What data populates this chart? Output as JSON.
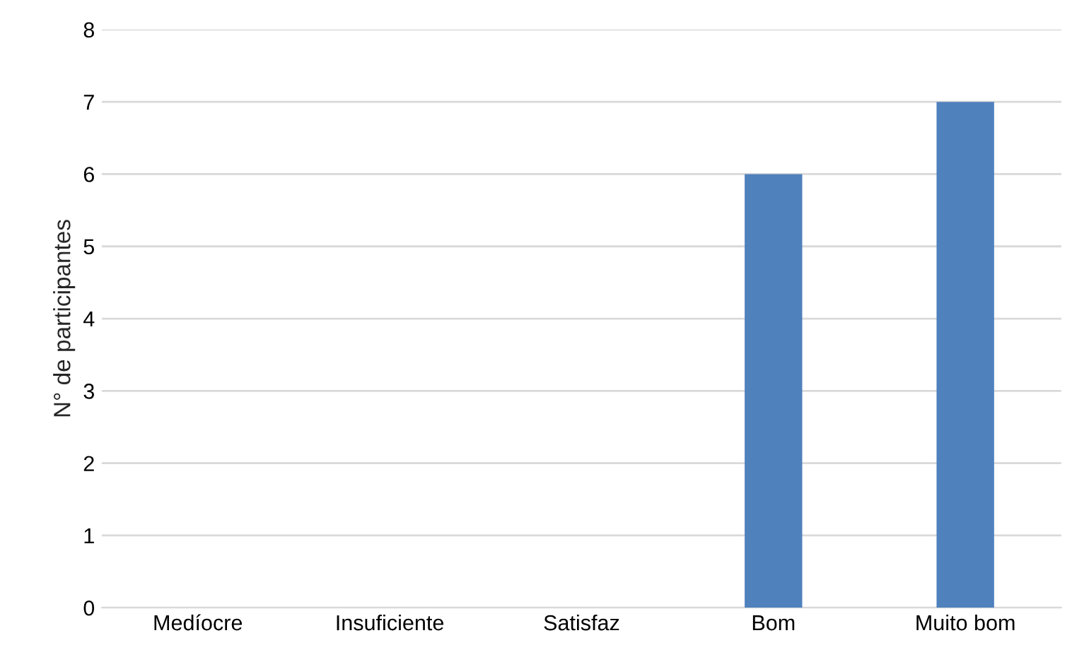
{
  "chart_data": {
    "type": "bar",
    "ylabel": "N° de participantes",
    "categories": [
      "Medíocre",
      "Insuficiente",
      "Satisfaz",
      "Bom",
      "Muito bom"
    ],
    "values": [
      0,
      0,
      0,
      6,
      7
    ],
    "color": "#4f81bd",
    "ylim": [
      0,
      8
    ],
    "yticks": [
      0,
      1,
      2,
      3,
      4,
      5,
      6,
      7,
      8
    ],
    "grid": "y"
  }
}
